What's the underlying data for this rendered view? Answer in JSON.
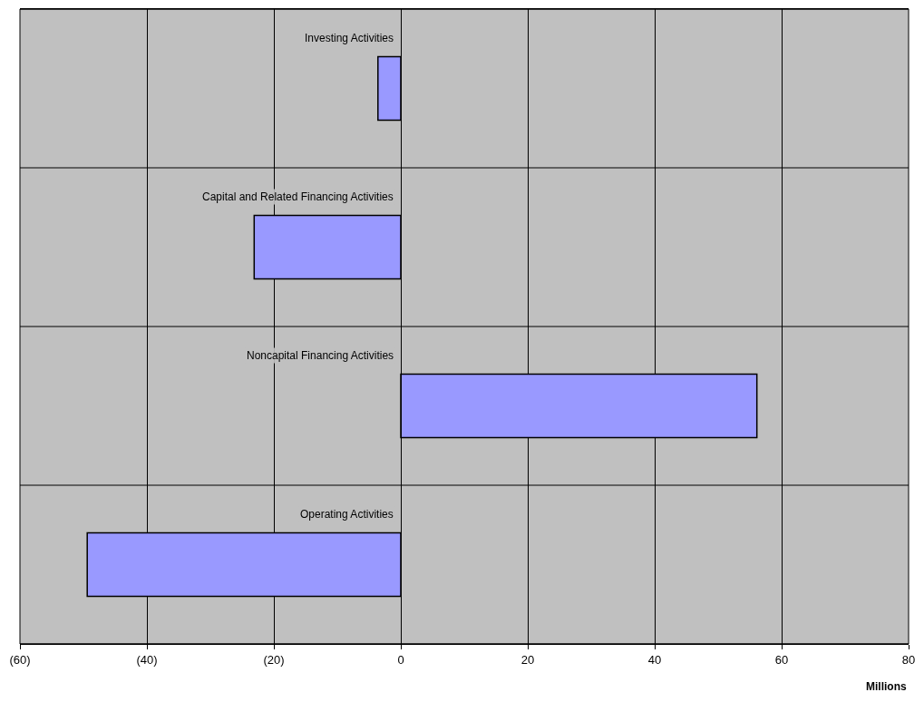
{
  "chart_data": {
    "type": "bar",
    "orientation": "horizontal",
    "xlabel": "Millions",
    "categories": [
      "Investing Activities",
      "Capital and Related Financing Activities",
      "Noncapital Financing Activities",
      "Operating Activities"
    ],
    "values": [
      -3.6,
      -23.1,
      56.1,
      -49.4
    ],
    "color": "#9999ff",
    "xlim": [
      -60,
      80
    ],
    "xticks": [
      {
        "value": -60,
        "label": "(60)"
      },
      {
        "value": -40,
        "label": "(40)"
      },
      {
        "value": -20,
        "label": "(20)"
      },
      0,
      20,
      40,
      60,
      80
    ],
    "grid": true
  }
}
